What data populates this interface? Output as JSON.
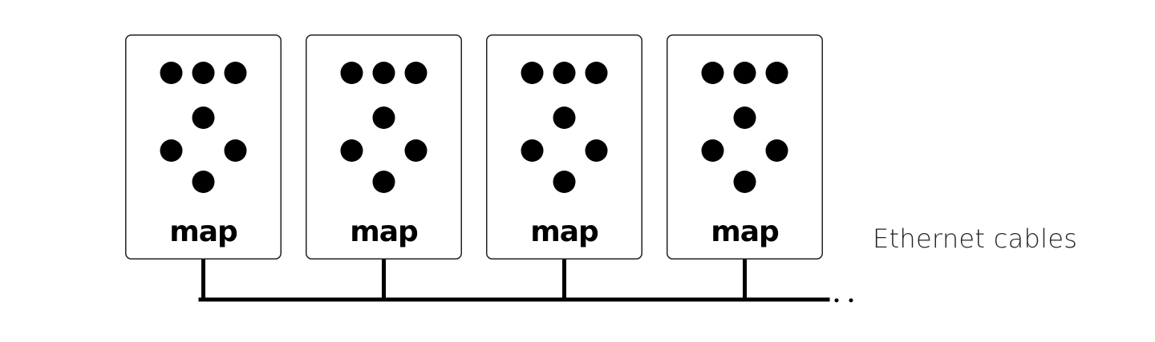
{
  "devices": [
    {
      "logo": "map"
    },
    {
      "logo": "map"
    },
    {
      "logo": "map"
    },
    {
      "logo": "map"
    }
  ],
  "cable_label": "Ethernet cables",
  "colors": {
    "device_border": "#222222",
    "led": "#000000",
    "cable": "#000000"
  }
}
